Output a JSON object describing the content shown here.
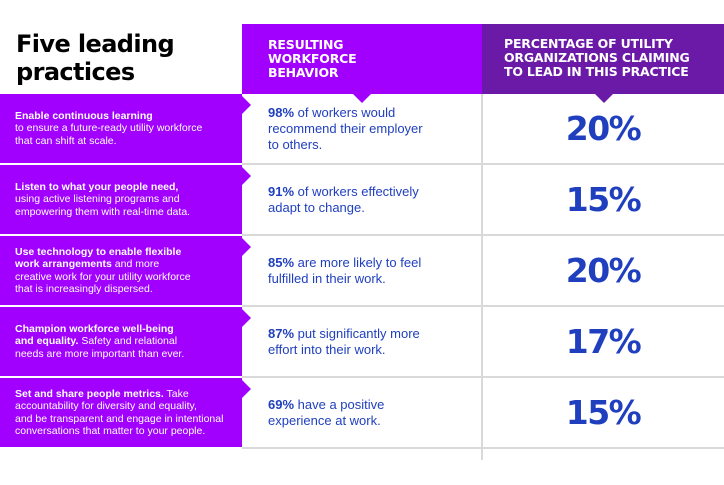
{
  "title": {
    "line1": "Five leading",
    "line2": "practices"
  },
  "headers": {
    "behavior": [
      "RESULTING",
      "WORKFORCE",
      "BEHAVIOR"
    ],
    "percent": [
      "PERCENTAGE OF UTILITY",
      "ORGANIZATIONS CLAIMING",
      "TO LEAD IN THIS PRACTICE"
    ]
  },
  "rows": [
    {
      "practice_bold": [
        "Enable continuous learning"
      ],
      "practice_rest": [
        "to ensure a future-ready utility workforce",
        "that can shift at scale."
      ],
      "behavior_pct": "98%",
      "behavior_text": [
        "of workers would",
        "recommend their employer",
        "to others."
      ],
      "percent": "20%"
    },
    {
      "practice_bold": [
        "Listen to what your people need,"
      ],
      "practice_rest": [
        "using active listening programs and",
        "empowering them with real-time data."
      ],
      "behavior_pct": "91%",
      "behavior_text": [
        "of workers effectively",
        "adapt to change."
      ],
      "percent": "15%"
    },
    {
      "practice_bold": [
        "Use technology to enable flexible",
        "work arrangements"
      ],
      "practice_rest": [
        "and more",
        "creative work for your utility workforce",
        "that is increasingly dispersed."
      ],
      "behavior_pct": "85%",
      "behavior_text": [
        "are more likely to feel",
        "fulfilled in their work."
      ],
      "percent": "20%"
    },
    {
      "practice_bold": [
        "Champion workforce well-being",
        "and equality."
      ],
      "practice_rest": [
        "Safety and relational",
        "needs are more important than ever."
      ],
      "behavior_pct": "87%",
      "behavior_text": [
        "put significantly more",
        "effort into their work."
      ],
      "percent": "17%"
    },
    {
      "practice_bold": [
        "Set and share people metrics."
      ],
      "practice_rest": [
        "Take",
        "accountability for diversity and equality,",
        "and be transparent and engage in intentional",
        "conversations that matter to your people."
      ],
      "behavior_pct": "69%",
      "behavior_text": [
        "have a positive",
        "experience at work."
      ],
      "percent": "15%"
    }
  ],
  "colors": {
    "accent_purple": "#a100ff",
    "header_dark_purple": "#6a1aa6",
    "value_blue": "#1f3fbf",
    "divider_gray": "#d9d9d9"
  }
}
